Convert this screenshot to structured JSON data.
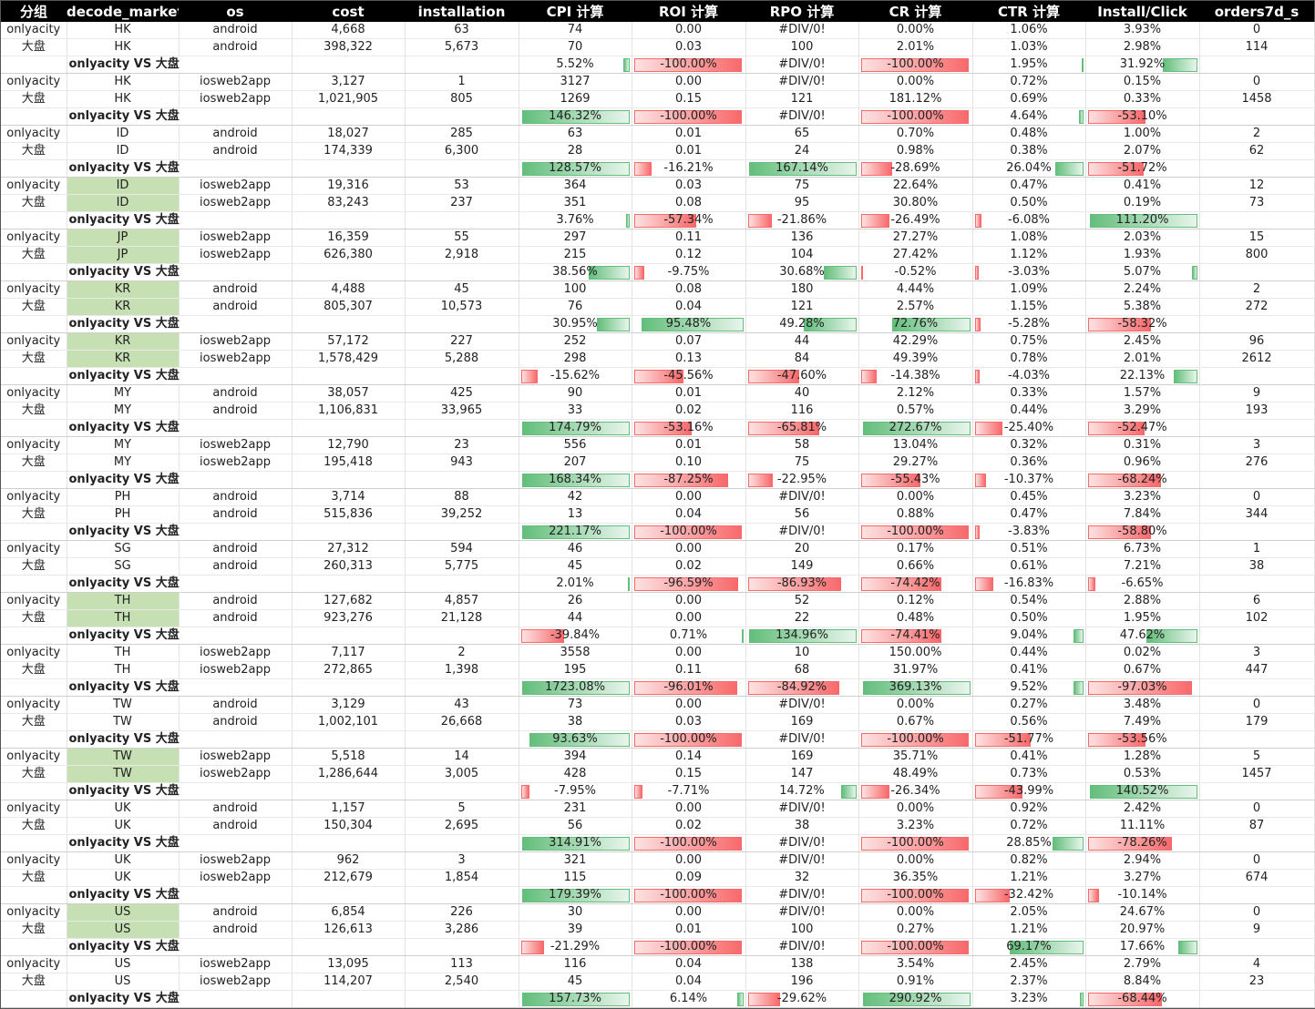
{
  "headers": [
    "分组",
    "decode_market",
    "os",
    "cost",
    "installation",
    "CPI 计算",
    "ROI 计算",
    "RPO 计算",
    "CR 计算",
    "CTR 计算",
    "Install/Click",
    "orders7d_s"
  ],
  "compare_label": "onlyacity VS 大盘",
  "blocks": [
    {
      "market": "HK",
      "os": "android",
      "hl": false,
      "r1": {
        "group": "onlyacity",
        "cost": "4,668",
        "inst": "63",
        "cpi": "74",
        "roi": "0.00",
        "rpo": "#DIV/0!",
        "cr": "0.00%",
        "ctr": "1.06%",
        "ic": "3.93%",
        "ord": "0"
      },
      "r2": {
        "group": "大盘",
        "cost": "398,322",
        "inst": "5,673",
        "cpi": "70",
        "roi": "0.03",
        "rpo": "100",
        "cr": "2.01%",
        "ctr": "1.03%",
        "ic": "2.98%",
        "ord": "114"
      },
      "cmp": {
        "cpi": "5.52%",
        "roi": "-100.00%",
        "rpo": "#DIV/0!",
        "cr": "-100.00%",
        "ctr": "1.95%",
        "ic": "31.92%"
      }
    },
    {
      "market": "HK",
      "os": "iosweb2app",
      "hl": false,
      "r1": {
        "group": "onlyacity",
        "cost": "3,127",
        "inst": "1",
        "cpi": "3127",
        "roi": "0.00",
        "rpo": "#DIV/0!",
        "cr": "0.00%",
        "ctr": "0.72%",
        "ic": "0.15%",
        "ord": "0"
      },
      "r2": {
        "group": "大盘",
        "cost": "1,021,905",
        "inst": "805",
        "cpi": "1269",
        "roi": "0.15",
        "rpo": "121",
        "cr": "181.12%",
        "ctr": "0.69%",
        "ic": "0.33%",
        "ord": "1458"
      },
      "cmp": {
        "cpi": "146.32%",
        "roi": "-100.00%",
        "rpo": "#DIV/0!",
        "cr": "-100.00%",
        "ctr": "4.64%",
        "ic": "-53.10%"
      }
    },
    {
      "market": "ID",
      "os": "android",
      "hl": false,
      "r1": {
        "group": "onlyacity",
        "cost": "18,027",
        "inst": "285",
        "cpi": "63",
        "roi": "0.01",
        "rpo": "65",
        "cr": "0.70%",
        "ctr": "0.48%",
        "ic": "1.00%",
        "ord": "2"
      },
      "r2": {
        "group": "大盘",
        "cost": "174,339",
        "inst": "6,300",
        "cpi": "28",
        "roi": "0.01",
        "rpo": "24",
        "cr": "0.98%",
        "ctr": "0.38%",
        "ic": "2.07%",
        "ord": "62"
      },
      "cmp": {
        "cpi": "128.57%",
        "roi": "-16.21%",
        "rpo": "167.14%",
        "cr": "-28.69%",
        "ctr": "26.04%",
        "ic": "-51.72%"
      }
    },
    {
      "market": "ID",
      "os": "iosweb2app",
      "hl": true,
      "r1": {
        "group": "onlyacity",
        "cost": "19,316",
        "inst": "53",
        "cpi": "364",
        "roi": "0.03",
        "rpo": "75",
        "cr": "22.64%",
        "ctr": "0.47%",
        "ic": "0.41%",
        "ord": "12"
      },
      "r2": {
        "group": "大盘",
        "cost": "83,243",
        "inst": "237",
        "cpi": "351",
        "roi": "0.08",
        "rpo": "95",
        "cr": "30.80%",
        "ctr": "0.50%",
        "ic": "0.19%",
        "ord": "73"
      },
      "cmp": {
        "cpi": "3.76%",
        "roi": "-57.34%",
        "rpo": "-21.86%",
        "cr": "-26.49%",
        "ctr": "-6.08%",
        "ic": "111.20%"
      }
    },
    {
      "market": "JP",
      "os": "iosweb2app",
      "hl": true,
      "r1": {
        "group": "onlyacity",
        "cost": "16,359",
        "inst": "55",
        "cpi": "297",
        "roi": "0.11",
        "rpo": "136",
        "cr": "27.27%",
        "ctr": "1.08%",
        "ic": "2.03%",
        "ord": "15"
      },
      "r2": {
        "group": "大盘",
        "cost": "626,380",
        "inst": "2,918",
        "cpi": "215",
        "roi": "0.12",
        "rpo": "104",
        "cr": "27.42%",
        "ctr": "1.12%",
        "ic": "1.93%",
        "ord": "800"
      },
      "cmp": {
        "cpi": "38.56%",
        "roi": "-9.75%",
        "rpo": "30.68%",
        "cr": "-0.52%",
        "ctr": "-3.03%",
        "ic": "5.07%"
      }
    },
    {
      "market": "KR",
      "os": "android",
      "hl": true,
      "r1": {
        "group": "onlyacity",
        "cost": "4,488",
        "inst": "45",
        "cpi": "100",
        "roi": "0.08",
        "rpo": "180",
        "cr": "4.44%",
        "ctr": "1.09%",
        "ic": "2.24%",
        "ord": "2"
      },
      "r2": {
        "group": "大盘",
        "cost": "805,307",
        "inst": "10,573",
        "cpi": "76",
        "roi": "0.04",
        "rpo": "121",
        "cr": "2.57%",
        "ctr": "1.15%",
        "ic": "5.38%",
        "ord": "272"
      },
      "cmp": {
        "cpi": "30.95%",
        "roi": "95.48%",
        "rpo": "49.28%",
        "cr": "72.76%",
        "ctr": "-5.28%",
        "ic": "-58.32%"
      }
    },
    {
      "market": "KR",
      "os": "iosweb2app",
      "hl": true,
      "r1": {
        "group": "onlyacity",
        "cost": "57,172",
        "inst": "227",
        "cpi": "252",
        "roi": "0.07",
        "rpo": "44",
        "cr": "42.29%",
        "ctr": "0.75%",
        "ic": "2.45%",
        "ord": "96"
      },
      "r2": {
        "group": "大盘",
        "cost": "1,578,429",
        "inst": "5,288",
        "cpi": "298",
        "roi": "0.13",
        "rpo": "84",
        "cr": "49.39%",
        "ctr": "0.78%",
        "ic": "2.01%",
        "ord": "2612"
      },
      "cmp": {
        "cpi": "-15.62%",
        "roi": "-45.56%",
        "rpo": "-47.60%",
        "cr": "-14.38%",
        "ctr": "-4.03%",
        "ic": "22.13%"
      }
    },
    {
      "market": "MY",
      "os": "android",
      "hl": false,
      "r1": {
        "group": "onlyacity",
        "cost": "38,057",
        "inst": "425",
        "cpi": "90",
        "roi": "0.01",
        "rpo": "40",
        "cr": "2.12%",
        "ctr": "0.33%",
        "ic": "1.57%",
        "ord": "9"
      },
      "r2": {
        "group": "大盘",
        "cost": "1,106,831",
        "inst": "33,965",
        "cpi": "33",
        "roi": "0.02",
        "rpo": "116",
        "cr": "0.57%",
        "ctr": "0.44%",
        "ic": "3.29%",
        "ord": "193"
      },
      "cmp": {
        "cpi": "174.79%",
        "roi": "-53.16%",
        "rpo": "-65.81%",
        "cr": "272.67%",
        "ctr": "-25.40%",
        "ic": "-52.47%"
      }
    },
    {
      "market": "MY",
      "os": "iosweb2app",
      "hl": false,
      "r1": {
        "group": "onlyacity",
        "cost": "12,790",
        "inst": "23",
        "cpi": "556",
        "roi": "0.01",
        "rpo": "58",
        "cr": "13.04%",
        "ctr": "0.32%",
        "ic": "0.31%",
        "ord": "3"
      },
      "r2": {
        "group": "大盘",
        "cost": "195,418",
        "inst": "943",
        "cpi": "207",
        "roi": "0.10",
        "rpo": "75",
        "cr": "29.27%",
        "ctr": "0.36%",
        "ic": "0.96%",
        "ord": "276"
      },
      "cmp": {
        "cpi": "168.34%",
        "roi": "-87.25%",
        "rpo": "-22.95%",
        "cr": "-55.43%",
        "ctr": "-10.37%",
        "ic": "-68.24%"
      }
    },
    {
      "market": "PH",
      "os": "android",
      "hl": false,
      "r1": {
        "group": "onlyacity",
        "cost": "3,714",
        "inst": "88",
        "cpi": "42",
        "roi": "0.00",
        "rpo": "#DIV/0!",
        "cr": "0.00%",
        "ctr": "0.45%",
        "ic": "3.23%",
        "ord": "0"
      },
      "r2": {
        "group": "大盘",
        "cost": "515,836",
        "inst": "39,252",
        "cpi": "13",
        "roi": "0.04",
        "rpo": "56",
        "cr": "0.88%",
        "ctr": "0.47%",
        "ic": "7.84%",
        "ord": "344"
      },
      "cmp": {
        "cpi": "221.17%",
        "roi": "-100.00%",
        "rpo": "#DIV/0!",
        "cr": "-100.00%",
        "ctr": "-3.83%",
        "ic": "-58.80%"
      }
    },
    {
      "market": "SG",
      "os": "android",
      "hl": false,
      "r1": {
        "group": "onlyacity",
        "cost": "27,312",
        "inst": "594",
        "cpi": "46",
        "roi": "0.00",
        "rpo": "20",
        "cr": "0.17%",
        "ctr": "0.51%",
        "ic": "6.73%",
        "ord": "1"
      },
      "r2": {
        "group": "大盘",
        "cost": "260,313",
        "inst": "5,775",
        "cpi": "45",
        "roi": "0.02",
        "rpo": "149",
        "cr": "0.66%",
        "ctr": "0.61%",
        "ic": "7.21%",
        "ord": "38"
      },
      "cmp": {
        "cpi": "2.01%",
        "roi": "-96.59%",
        "rpo": "-86.93%",
        "cr": "-74.42%",
        "ctr": "-16.83%",
        "ic": "-6.65%"
      }
    },
    {
      "market": "TH",
      "os": "android",
      "hl": true,
      "r1": {
        "group": "onlyacity",
        "cost": "127,682",
        "inst": "4,857",
        "cpi": "26",
        "roi": "0.00",
        "rpo": "52",
        "cr": "0.12%",
        "ctr": "0.54%",
        "ic": "2.88%",
        "ord": "6"
      },
      "r2": {
        "group": "大盘",
        "cost": "923,276",
        "inst": "21,128",
        "cpi": "44",
        "roi": "0.00",
        "rpo": "22",
        "cr": "0.48%",
        "ctr": "0.50%",
        "ic": "1.95%",
        "ord": "102"
      },
      "cmp": {
        "cpi": "-39.84%",
        "roi": "0.71%",
        "rpo": "134.96%",
        "cr": "-74.41%",
        "ctr": "9.04%",
        "ic": "47.62%"
      }
    },
    {
      "market": "TH",
      "os": "iosweb2app",
      "hl": false,
      "r1": {
        "group": "onlyacity",
        "cost": "7,117",
        "inst": "2",
        "cpi": "3558",
        "roi": "0.00",
        "rpo": "10",
        "cr": "150.00%",
        "ctr": "0.44%",
        "ic": "0.02%",
        "ord": "3"
      },
      "r2": {
        "group": "大盘",
        "cost": "272,865",
        "inst": "1,398",
        "cpi": "195",
        "roi": "0.11",
        "rpo": "68",
        "cr": "31.97%",
        "ctr": "0.41%",
        "ic": "0.67%",
        "ord": "447"
      },
      "cmp": {
        "cpi": "1723.08%",
        "roi": "-96.01%",
        "rpo": "-84.92%",
        "cr": "369.13%",
        "ctr": "9.52%",
        "ic": "-97.03%"
      }
    },
    {
      "market": "TW",
      "os": "android",
      "hl": false,
      "r1": {
        "group": "onlyacity",
        "cost": "3,129",
        "inst": "43",
        "cpi": "73",
        "roi": "0.00",
        "rpo": "#DIV/0!",
        "cr": "0.00%",
        "ctr": "0.27%",
        "ic": "3.48%",
        "ord": "0"
      },
      "r2": {
        "group": "大盘",
        "cost": "1,002,101",
        "inst": "26,668",
        "cpi": "38",
        "roi": "0.03",
        "rpo": "169",
        "cr": "0.67%",
        "ctr": "0.56%",
        "ic": "7.49%",
        "ord": "179"
      },
      "cmp": {
        "cpi": "93.63%",
        "roi": "-100.00%",
        "rpo": "#DIV/0!",
        "cr": "-100.00%",
        "ctr": "-51.77%",
        "ic": "-53.56%"
      }
    },
    {
      "market": "TW",
      "os": "iosweb2app",
      "hl": true,
      "r1": {
        "group": "onlyacity",
        "cost": "5,518",
        "inst": "14",
        "cpi": "394",
        "roi": "0.14",
        "rpo": "169",
        "cr": "35.71%",
        "ctr": "0.41%",
        "ic": "1.28%",
        "ord": "5"
      },
      "r2": {
        "group": "大盘",
        "cost": "1,286,644",
        "inst": "3,005",
        "cpi": "428",
        "roi": "0.15",
        "rpo": "147",
        "cr": "48.49%",
        "ctr": "0.73%",
        "ic": "0.53%",
        "ord": "1457"
      },
      "cmp": {
        "cpi": "-7.95%",
        "roi": "-7.71%",
        "rpo": "14.72%",
        "cr": "-26.34%",
        "ctr": "-43.99%",
        "ic": "140.52%"
      }
    },
    {
      "market": "UK",
      "os": "android",
      "hl": false,
      "r1": {
        "group": "onlyacity",
        "cost": "1,157",
        "inst": "5",
        "cpi": "231",
        "roi": "0.00",
        "rpo": "#DIV/0!",
        "cr": "0.00%",
        "ctr": "0.92%",
        "ic": "2.42%",
        "ord": "0"
      },
      "r2": {
        "group": "大盘",
        "cost": "150,304",
        "inst": "2,695",
        "cpi": "56",
        "roi": "0.02",
        "rpo": "38",
        "cr": "3.23%",
        "ctr": "0.72%",
        "ic": "11.11%",
        "ord": "87"
      },
      "cmp": {
        "cpi": "314.91%",
        "roi": "-100.00%",
        "rpo": "#DIV/0!",
        "cr": "-100.00%",
        "ctr": "28.85%",
        "ic": "-78.26%"
      }
    },
    {
      "market": "UK",
      "os": "iosweb2app",
      "hl": false,
      "r1": {
        "group": "onlyacity",
        "cost": "962",
        "inst": "3",
        "cpi": "321",
        "roi": "0.00",
        "rpo": "#DIV/0!",
        "cr": "0.00%",
        "ctr": "0.82%",
        "ic": "2.94%",
        "ord": "0"
      },
      "r2": {
        "group": "大盘",
        "cost": "212,679",
        "inst": "1,854",
        "cpi": "115",
        "roi": "0.09",
        "rpo": "32",
        "cr": "36.35%",
        "ctr": "1.21%",
        "ic": "3.27%",
        "ord": "674"
      },
      "cmp": {
        "cpi": "179.39%",
        "roi": "-100.00%",
        "rpo": "#DIV/0!",
        "cr": "-100.00%",
        "ctr": "-32.42%",
        "ic": "-10.14%"
      }
    },
    {
      "market": "US",
      "os": "android",
      "hl": true,
      "r1": {
        "group": "onlyacity",
        "cost": "6,854",
        "inst": "226",
        "cpi": "30",
        "roi": "0.00",
        "rpo": "#DIV/0!",
        "cr": "0.00%",
        "ctr": "2.05%",
        "ic": "24.67%",
        "ord": "0"
      },
      "r2": {
        "group": "大盘",
        "cost": "126,613",
        "inst": "3,286",
        "cpi": "39",
        "roi": "0.01",
        "rpo": "100",
        "cr": "0.27%",
        "ctr": "1.21%",
        "ic": "20.97%",
        "ord": "9"
      },
      "cmp": {
        "cpi": "-21.29%",
        "roi": "-100.00%",
        "rpo": "#DIV/0!",
        "cr": "-100.00%",
        "ctr": "69.17%",
        "ic": "17.66%"
      }
    },
    {
      "market": "US",
      "os": "iosweb2app",
      "hl": false,
      "r1": {
        "group": "onlyacity",
        "cost": "13,095",
        "inst": "113",
        "cpi": "116",
        "roi": "0.04",
        "rpo": "138",
        "cr": "3.54%",
        "ctr": "2.45%",
        "ic": "2.79%",
        "ord": "4"
      },
      "r2": {
        "group": "大盘",
        "cost": "114,207",
        "inst": "2,540",
        "cpi": "45",
        "roi": "0.04",
        "rpo": "196",
        "cr": "0.91%",
        "ctr": "2.37%",
        "ic": "8.84%",
        "ord": "23"
      },
      "cmp": {
        "cpi": "157.73%",
        "roi": "6.14%",
        "rpo": "-29.62%",
        "cr": "290.92%",
        "ctr": "3.23%",
        "ic": "-68.44%"
      }
    }
  ],
  "colors": {
    "header_bg": "#000000",
    "market_highlight": "#c6e0b4",
    "bar_positive": "#63be7b",
    "bar_negative": "#f8696b"
  }
}
